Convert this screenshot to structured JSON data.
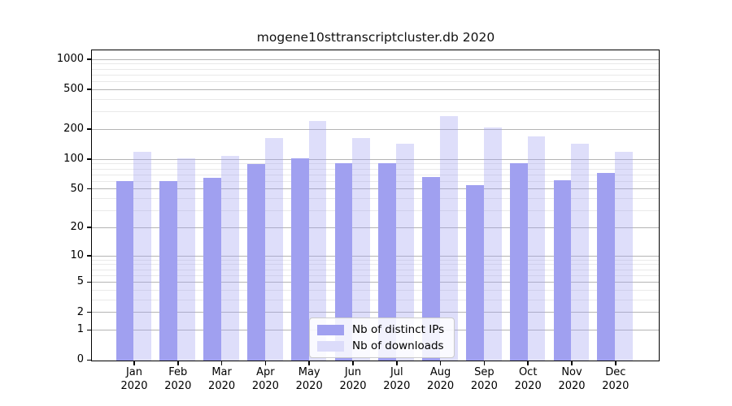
{
  "page": {
    "background": "#ffffff"
  },
  "chart_data": {
    "type": "bar",
    "title": "mogene10sttranscriptcluster.db 2020",
    "categories": [
      "Jan",
      "Feb",
      "Mar",
      "Apr",
      "May",
      "Jun",
      "Jul",
      "Aug",
      "Sep",
      "Oct",
      "Nov",
      "Dec"
    ],
    "x_year_label": "2020",
    "xlabel": "",
    "ylabel": "",
    "series": [
      {
        "name": "Nb of distinct IPs",
        "color": "#a0a0f0",
        "values": [
          61,
          61,
          66,
          90,
          103,
          93,
          93,
          67,
          55,
          92,
          62,
          74
        ]
      },
      {
        "name": "Nb of downloads",
        "color": "#dcdcfa",
        "values": [
          120,
          104,
          109,
          164,
          245,
          166,
          146,
          274,
          211,
          173,
          144,
          120
        ]
      }
    ],
    "yscale": "log1p",
    "ylim": [
      0,
      1250
    ],
    "y_ticks": [
      1000,
      500,
      200,
      100,
      50,
      20,
      10,
      5,
      2,
      1,
      0
    ],
    "y_minor_ticks": [
      3,
      4,
      6,
      7,
      8,
      9,
      30,
      40,
      60,
      70,
      80,
      90,
      300,
      400,
      600,
      700,
      800,
      900
    ],
    "grid": true,
    "legend_position": "lower center"
  }
}
